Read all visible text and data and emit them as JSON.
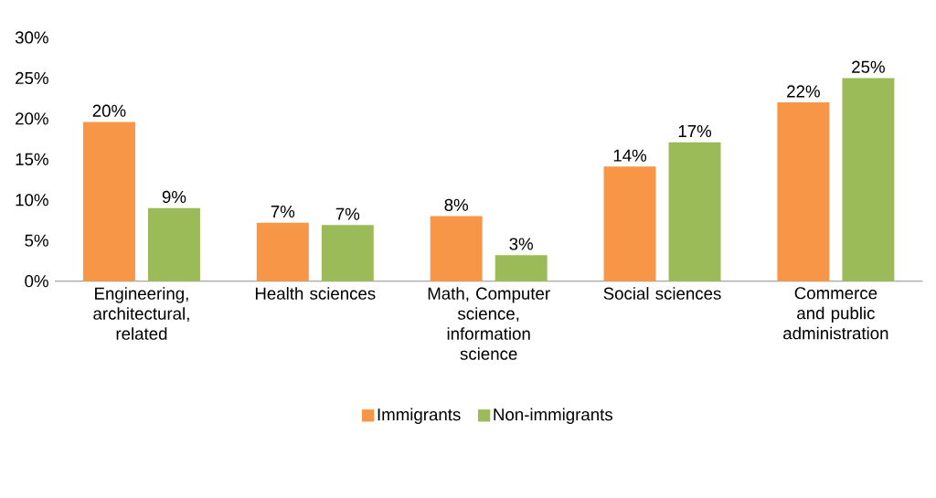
{
  "chart_data": {
    "type": "bar",
    "categories": [
      "Engineering, architectural, related",
      "Health sciences",
      "Math, Computer science, information science",
      "Social sciences",
      "Commerce and public administration"
    ],
    "series": [
      {
        "name": "Immigrants",
        "color": "#f79646",
        "values": [
          19.6,
          7.2,
          8.0,
          14.1,
          22.0
        ],
        "value_labels": [
          "20%",
          "7%",
          "8%",
          "14%",
          "22%"
        ]
      },
      {
        "name": "Non-immigrants",
        "color": "#9bbb59",
        "values": [
          9.0,
          6.9,
          3.2,
          17.1,
          25.0
        ],
        "value_labels": [
          "9%",
          "7%",
          "3%",
          "17%",
          "25%"
        ]
      }
    ],
    "ylim": [
      0,
      30
    ],
    "yticks": [
      {
        "value": 0,
        "label": "0%"
      },
      {
        "value": 5,
        "label": "5%"
      },
      {
        "value": 10,
        "label": "10%"
      },
      {
        "value": 15,
        "label": "15%"
      },
      {
        "value": 20,
        "label": "20%"
      },
      {
        "value": 25,
        "label": "25%"
      },
      {
        "value": 30,
        "label": "30%"
      }
    ],
    "legend": "bottom"
  }
}
